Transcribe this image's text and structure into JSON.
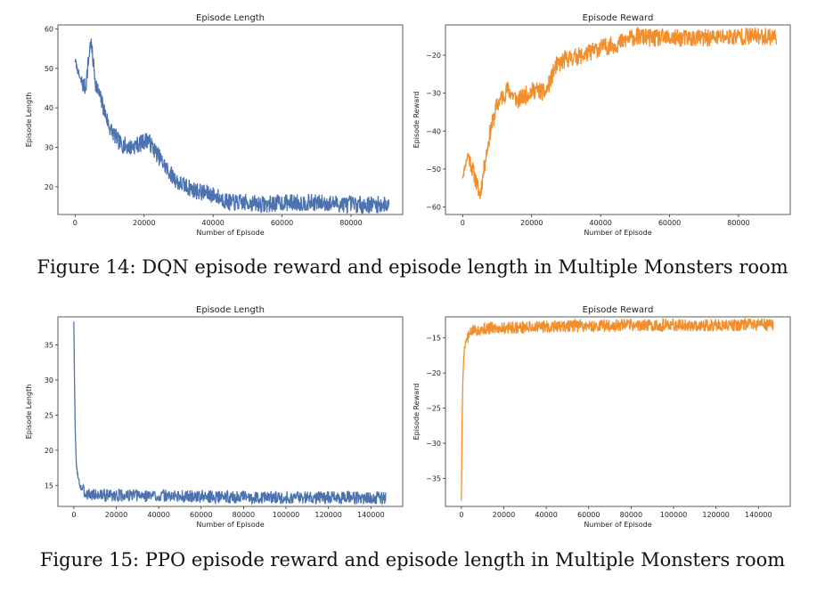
{
  "figures": [
    {
      "caption": "Figure 14: DQN episode reward and episode length in Multiple Monsters room",
      "charts": [
        {
          "type": "line",
          "title": "Episode Length",
          "xlabel": "Number of Episode",
          "ylabel": "Episode Length",
          "color": "#4c72b0",
          "xlim": [
            -5000,
            95000
          ],
          "ylim": [
            13,
            61
          ],
          "xticks": [
            0,
            20000,
            40000,
            60000,
            80000
          ],
          "yticks": [
            20,
            30,
            40,
            50,
            60
          ],
          "xmax": 91000,
          "anchors": [
            [
              0,
              52
            ],
            [
              1500,
              47
            ],
            [
              3000,
              45
            ],
            [
              4500,
              57
            ],
            [
              6000,
              46
            ],
            [
              7500,
              42
            ],
            [
              10000,
              35
            ],
            [
              13000,
              31
            ],
            [
              16000,
              30
            ],
            [
              19000,
              31
            ],
            [
              21000,
              32
            ],
            [
              24000,
              28
            ],
            [
              27000,
              24
            ],
            [
              30000,
              21
            ],
            [
              35000,
              19
            ],
            [
              40000,
              18
            ],
            [
              45000,
              16
            ],
            [
              50000,
              16
            ],
            [
              55000,
              15.5
            ],
            [
              60000,
              16
            ],
            [
              70000,
              16
            ],
            [
              80000,
              15.5
            ],
            [
              91000,
              15.5
            ]
          ],
          "noise": 2.2,
          "seed": 7
        },
        {
          "type": "line",
          "title": "Episode Reward",
          "xlabel": "Number of Episode",
          "ylabel": "Episode Reward",
          "color": "#f28e2b",
          "xlim": [
            -5000,
            95000
          ],
          "ylim": [
            -62,
            -12
          ],
          "xticks": [
            0,
            20000,
            40000,
            60000,
            80000
          ],
          "yticks": [
            -60,
            -50,
            -40,
            -30,
            -20
          ],
          "xmax": 91000,
          "anchors": [
            [
              0,
              -52
            ],
            [
              1500,
              -46
            ],
            [
              3500,
              -52
            ],
            [
              5000,
              -57
            ],
            [
              6500,
              -48
            ],
            [
              8000,
              -40
            ],
            [
              10000,
              -33
            ],
            [
              13000,
              -29
            ],
            [
              16000,
              -32
            ],
            [
              19000,
              -30
            ],
            [
              21000,
              -29
            ],
            [
              24000,
              -30
            ],
            [
              27000,
              -23
            ],
            [
              30000,
              -21
            ],
            [
              35000,
              -20
            ],
            [
              40000,
              -18
            ],
            [
              45000,
              -17
            ],
            [
              50000,
              -15
            ],
            [
              55000,
              -15.5
            ],
            [
              60000,
              -15.5
            ],
            [
              70000,
              -15.5
            ],
            [
              80000,
              -15
            ],
            [
              91000,
              -15
            ]
          ],
          "noise": 2.4,
          "seed": 11
        }
      ]
    },
    {
      "caption": "Figure 15: PPO episode reward and episode length in Multiple Monsters room",
      "charts": [
        {
          "type": "line",
          "title": "Episode Length",
          "xlabel": "Number of Episode",
          "ylabel": "Episode Length",
          "color": "#4c72b0",
          "xlim": [
            -7500,
            155000
          ],
          "ylim": [
            12,
            39
          ],
          "xticks": [
            0,
            20000,
            40000,
            60000,
            80000,
            100000,
            120000,
            140000
          ],
          "yticks": [
            15,
            20,
            25,
            30,
            35
          ],
          "xmax": 147000,
          "anchors": [
            [
              0,
              38.5
            ],
            [
              300,
              30
            ],
            [
              700,
              22
            ],
            [
              1200,
              18
            ],
            [
              2000,
              16
            ],
            [
              3000,
              15
            ],
            [
              5000,
              14
            ],
            [
              8000,
              13.7
            ],
            [
              15000,
              13.6
            ],
            [
              40000,
              13.5
            ],
            [
              80000,
              13.3
            ],
            [
              120000,
              13.3
            ],
            [
              147000,
              13.2
            ]
          ],
          "noise": 0.9,
          "seed": 3
        },
        {
          "type": "line",
          "title": "Episode Reward",
          "xlabel": "Number of Episode",
          "ylabel": "Episode Reward",
          "color": "#f28e2b",
          "xlim": [
            -7500,
            155000
          ],
          "ylim": [
            -39,
            -12
          ],
          "xticks": [
            0,
            20000,
            40000,
            60000,
            80000,
            100000,
            120000,
            140000
          ],
          "yticks": [
            -35,
            -30,
            -25,
            -20,
            -15
          ],
          "xmax": 147000,
          "anchors": [
            [
              0,
              -38
            ],
            [
              300,
              -28
            ],
            [
              700,
              -21
            ],
            [
              1200,
              -17
            ],
            [
              2000,
              -15.5
            ],
            [
              3000,
              -15
            ],
            [
              5000,
              -14
            ],
            [
              8000,
              -13.8
            ],
            [
              15000,
              -13.6
            ],
            [
              40000,
              -13.4
            ],
            [
              80000,
              -13.2
            ],
            [
              120000,
              -13.2
            ],
            [
              147000,
              -13.1
            ]
          ],
          "noise": 0.9,
          "seed": 5
        }
      ]
    }
  ]
}
